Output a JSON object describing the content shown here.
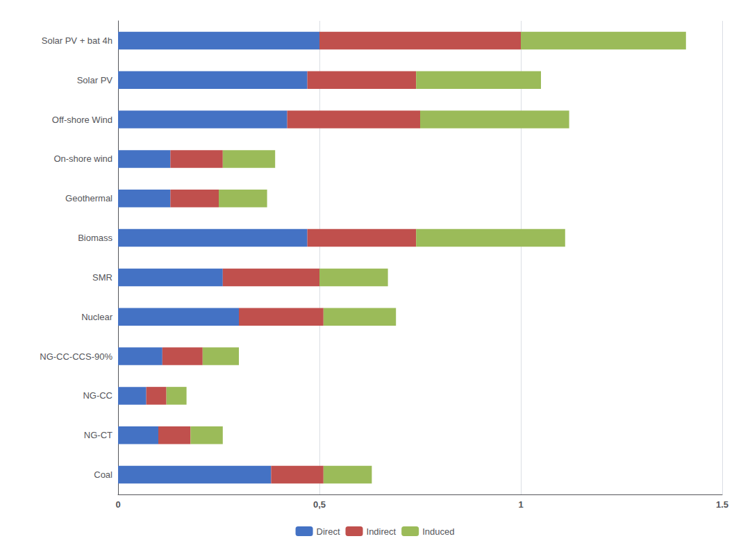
{
  "chart_data": {
    "type": "bar",
    "orientation": "horizontal",
    "stacked": true,
    "categories": [
      "Solar PV + bat 4h",
      "Solar PV",
      "Off-shore Wind",
      "On-shore wind",
      "Geothermal",
      "Biomass",
      "SMR",
      "Nuclear",
      "NG-CC-CCS-90%",
      "NG-CC",
      "NG-CT",
      "Coal"
    ],
    "series": [
      {
        "name": "Direct",
        "color": "#4472C4",
        "values": [
          0.5,
          0.47,
          0.42,
          0.13,
          0.13,
          0.47,
          0.26,
          0.3,
          0.11,
          0.07,
          0.1,
          0.38
        ]
      },
      {
        "name": "Indirect",
        "color": "#C0504D",
        "values": [
          0.5,
          0.27,
          0.33,
          0.13,
          0.12,
          0.27,
          0.24,
          0.21,
          0.1,
          0.05,
          0.08,
          0.13
        ]
      },
      {
        "name": "Induced",
        "color": "#9BBB59",
        "values": [
          0.41,
          0.31,
          0.37,
          0.13,
          0.12,
          0.37,
          0.17,
          0.18,
          0.09,
          0.05,
          0.08,
          0.12
        ]
      }
    ],
    "xlim": [
      0,
      1.5
    ],
    "xticks": [
      0,
      {
        "value": 0.5,
        "label": "0,5"
      },
      1,
      1.5
    ],
    "grid": true,
    "legend": "bottom"
  }
}
